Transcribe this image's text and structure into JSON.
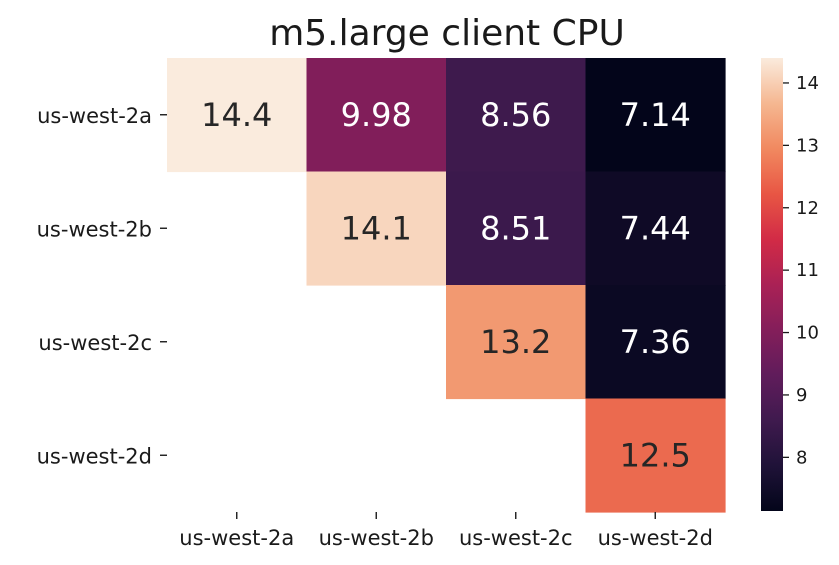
{
  "chart_data": {
    "type": "heatmap",
    "title": "m5.large client CPU",
    "x_labels": [
      "us-west-2a",
      "us-west-2b",
      "us-west-2c",
      "us-west-2d"
    ],
    "y_labels": [
      "us-west-2a",
      "us-west-2b",
      "us-west-2c",
      "us-west-2d"
    ],
    "values": [
      [
        14.4,
        9.98,
        8.56,
        7.14
      ],
      [
        null,
        14.1,
        8.51,
        7.44
      ],
      [
        null,
        null,
        13.2,
        7.36
      ],
      [
        null,
        null,
        null,
        12.5
      ]
    ],
    "value_labels": [
      [
        "14.4",
        "9.98",
        "8.56",
        "7.14"
      ],
      [
        null,
        "14.1",
        "8.51",
        "7.44"
      ],
      [
        null,
        null,
        "13.2",
        "7.36"
      ],
      [
        null,
        null,
        null,
        "12.5"
      ]
    ],
    "colorbar": {
      "colormap": "rocket",
      "vmin": 7.14,
      "vmax": 14.4,
      "ticks": [
        8,
        9,
        10,
        11,
        12,
        13,
        14
      ]
    },
    "xlabel": "",
    "ylabel": "",
    "grid": false
  }
}
